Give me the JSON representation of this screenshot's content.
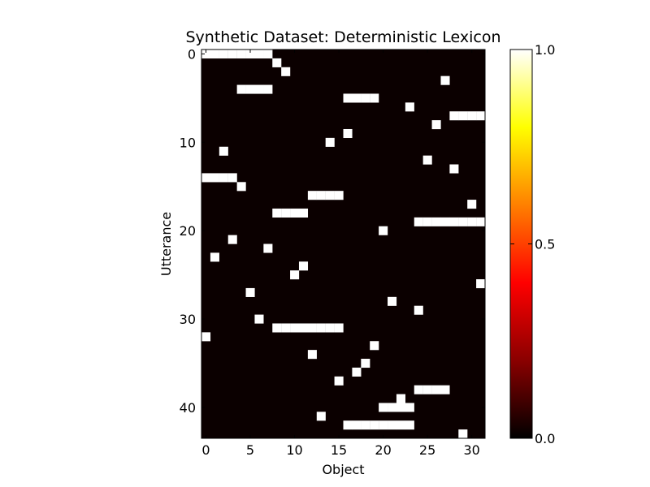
{
  "chart_data": {
    "type": "heatmap",
    "title": "Synthetic Dataset: Deterministic Lexicon",
    "xlabel": "Object",
    "ylabel": "Utterance",
    "rows": 44,
    "cols": 32,
    "x_ticks": [
      0,
      5,
      10,
      15,
      20,
      25,
      30
    ],
    "y_ticks": [
      0,
      10,
      20,
      30,
      40
    ],
    "colorbar": {
      "min": 0.0,
      "max": 1.0,
      "ticks": [
        0.0,
        0.5,
        1.0
      ],
      "tick_labels": [
        "0.0",
        "0.5",
        "1.0"
      ],
      "colormap": "hot",
      "stops": [
        "#000000",
        "#8a0000",
        "#ff0000",
        "#ff8000",
        "#ffff00",
        "#ffffff"
      ]
    },
    "background_value": 0,
    "background_color": "#0b0000",
    "active_value": 1,
    "active_color": "#ffffff",
    "cells": [
      {
        "row": 0,
        "cols": [
          0,
          1,
          2,
          3,
          4,
          5,
          6,
          7
        ]
      },
      {
        "row": 1,
        "cols": [
          8
        ]
      },
      {
        "row": 2,
        "cols": [
          9
        ]
      },
      {
        "row": 3,
        "cols": [
          27
        ]
      },
      {
        "row": 4,
        "cols": [
          4,
          5,
          6,
          7
        ]
      },
      {
        "row": 5,
        "cols": [
          16,
          17,
          18,
          19
        ]
      },
      {
        "row": 6,
        "cols": [
          23
        ]
      },
      {
        "row": 7,
        "cols": [
          28,
          29,
          30,
          31
        ]
      },
      {
        "row": 8,
        "cols": [
          26
        ]
      },
      {
        "row": 9,
        "cols": [
          16
        ]
      },
      {
        "row": 10,
        "cols": [
          14
        ]
      },
      {
        "row": 11,
        "cols": [
          2
        ]
      },
      {
        "row": 12,
        "cols": [
          25
        ]
      },
      {
        "row": 13,
        "cols": [
          28
        ]
      },
      {
        "row": 14,
        "cols": [
          0,
          1,
          2,
          3
        ]
      },
      {
        "row": 15,
        "cols": [
          4
        ]
      },
      {
        "row": 16,
        "cols": [
          12,
          13,
          14,
          15
        ]
      },
      {
        "row": 17,
        "cols": [
          30
        ]
      },
      {
        "row": 18,
        "cols": [
          8,
          9,
          10,
          11
        ]
      },
      {
        "row": 19,
        "cols": [
          24,
          25,
          26,
          27,
          28,
          29,
          30,
          31
        ]
      },
      {
        "row": 20,
        "cols": [
          20
        ]
      },
      {
        "row": 21,
        "cols": [
          3
        ]
      },
      {
        "row": 22,
        "cols": [
          7
        ]
      },
      {
        "row": 23,
        "cols": [
          1
        ]
      },
      {
        "row": 24,
        "cols": [
          11
        ]
      },
      {
        "row": 25,
        "cols": [
          10
        ]
      },
      {
        "row": 26,
        "cols": [
          31
        ]
      },
      {
        "row": 27,
        "cols": [
          5
        ]
      },
      {
        "row": 28,
        "cols": [
          21
        ]
      },
      {
        "row": 29,
        "cols": [
          24
        ]
      },
      {
        "row": 30,
        "cols": [
          6
        ]
      },
      {
        "row": 31,
        "cols": [
          8,
          9,
          10,
          11,
          12,
          13,
          14,
          15
        ]
      },
      {
        "row": 32,
        "cols": [
          0
        ]
      },
      {
        "row": 33,
        "cols": [
          19
        ]
      },
      {
        "row": 34,
        "cols": [
          12
        ]
      },
      {
        "row": 35,
        "cols": [
          18
        ]
      },
      {
        "row": 36,
        "cols": [
          17
        ]
      },
      {
        "row": 37,
        "cols": [
          15
        ]
      },
      {
        "row": 38,
        "cols": [
          24,
          25,
          26,
          27
        ]
      },
      {
        "row": 39,
        "cols": [
          22
        ]
      },
      {
        "row": 40,
        "cols": [
          20,
          21,
          22,
          23
        ]
      },
      {
        "row": 41,
        "cols": [
          13
        ]
      },
      {
        "row": 42,
        "cols": [
          16,
          17,
          18,
          19,
          20,
          21,
          22,
          23
        ]
      },
      {
        "row": 43,
        "cols": [
          29
        ]
      }
    ]
  }
}
